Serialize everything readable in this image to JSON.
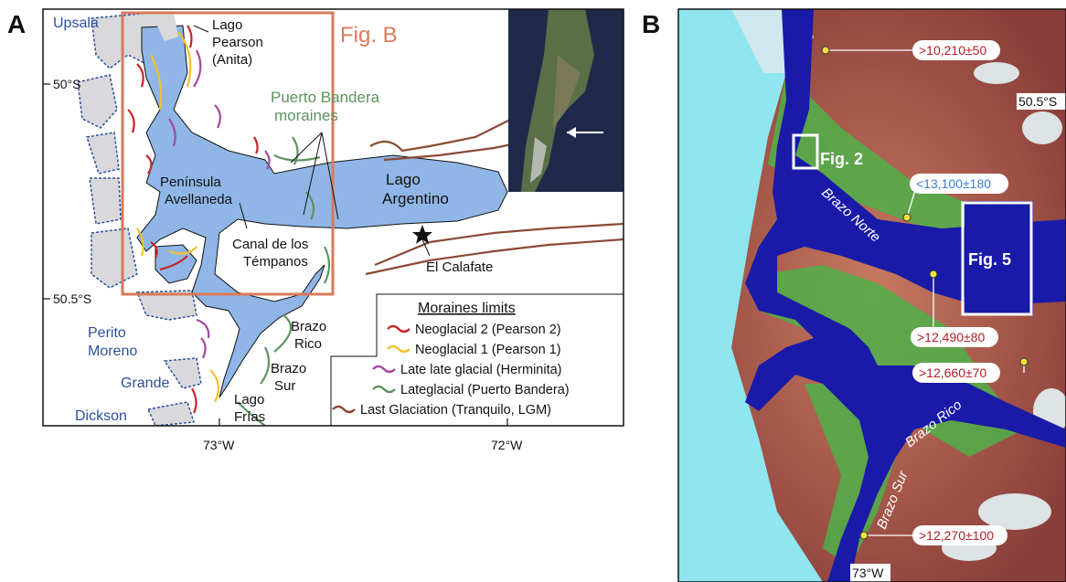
{
  "panel_a": {
    "letter": "A",
    "fig_b_label": "Fig. B",
    "lat_labels": [
      "50°S",
      "50.5°S"
    ],
    "lon_labels": [
      "73°W",
      "72°W"
    ],
    "places": {
      "upsala": "Upsala",
      "lago_pearson": [
        "Lago",
        "Pearson",
        "(Anita)"
      ],
      "puerto_bandera": [
        "Puerto Bandera",
        "moraines"
      ],
      "peninsula": [
        "Península",
        "Avellaneda"
      ],
      "lago_argentino": [
        "Lago",
        "Argentino"
      ],
      "canal": [
        "Canal de los",
        "Témpanos"
      ],
      "el_calafate": "El Calafate",
      "perito_moreno": [
        "Perito",
        "Moreno"
      ],
      "brazo_rico": [
        "Brazo",
        "Rico"
      ],
      "brazo_sur": [
        "Brazo",
        "Sur"
      ],
      "grande": "Grande",
      "lago_frias": [
        "Lago",
        "Frías"
      ],
      "dickson": "Dickson"
    },
    "legend": {
      "title": "Moraines limits",
      "items": [
        {
          "label": "Neoglacial 2 (Pearson 2)",
          "color": "#c8242a"
        },
        {
          "label": "Neoglacial 1 (Pearson 1)",
          "color": "#f2c12e"
        },
        {
          "label": "Late late glacial (Herminita)",
          "color": "#a24a9e"
        },
        {
          "label": "Lateglacial (Puerto Bandera)",
          "color": "#5c9460"
        },
        {
          "label": "Last Glaciation (Tranquilo, LGM)",
          "color": "#8b4a32"
        }
      ]
    },
    "colors": {
      "lake": "#8fb6e6",
      "ice": "#d9d9dc",
      "ice_outline": "#2c4f9e",
      "fig_b_box": "#d97a5a",
      "puerto_bandera_text": "#5c9460",
      "place_blue": "#2c4f9e"
    }
  },
  "panel_b": {
    "letter": "B",
    "lat_label": "50.5°S",
    "lon_label": "73°W",
    "fig_labels": [
      "Fig. 2",
      "Fig. 5"
    ],
    "brazo_labels": [
      "Brazo Norte",
      "Brazo Rico",
      "Brazo Sur"
    ],
    "ages": [
      {
        "text": ">10,210±50",
        "color": "#b3202a"
      },
      {
        "text": "<13,100±180",
        "color": "#3a7fd1"
      },
      {
        "text": ">12,490±80",
        "color": "#b3202a"
      },
      {
        "text": ">12,660±70",
        "color": "#b3202a"
      },
      {
        "text": ">12,270±100",
        "color": "#b3202a"
      }
    ],
    "colors": {
      "water": "#1a1aa8",
      "ice": "#8fe6ef",
      "vegetation": "#4fb04a",
      "rock": "#b8604a",
      "marker": "#f2e23a"
    }
  }
}
